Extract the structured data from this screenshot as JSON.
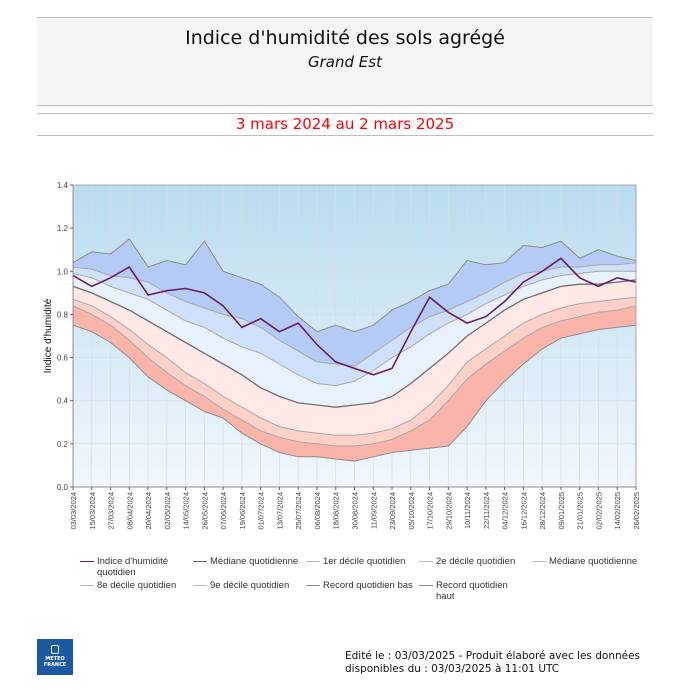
{
  "header": {
    "title": "Indice d'humidité des sols agrégé",
    "subtitle": "Grand Est",
    "period": "3 mars 2024 au 2 mars 2025"
  },
  "colors": {
    "index_line": "#6b1a6b",
    "period_text": "#ff0000",
    "band_high_top": "#b4ccf5",
    "band_d8_d9": "#cfe0fb",
    "band_med_d8": "#e8f1fe",
    "band_d2_med": "#ffe9e5",
    "band_d1_d2": "#fdd0c8",
    "band_low": "#fbb4a9",
    "plot_bg_top": "#b8dcef",
    "plot_bg_bottom": "#f1f7fd"
  },
  "chart_data": {
    "type": "area",
    "title": "Indice d'humidité des sols agrégé",
    "subtitle": "Grand Est",
    "xlabel": "",
    "ylabel": "Indice d'humidité",
    "ylim": [
      0.0,
      1.4
    ],
    "yticks": [
      "0.0",
      "0.2",
      "0.4",
      "0.6",
      "0.8",
      "1.0",
      "1.2",
      "1.4"
    ],
    "grid": true,
    "legend_position": "bottom",
    "x": [
      "03/03/2024",
      "15/03/2024",
      "27/03/2024",
      "08/04/2024",
      "20/04/2024",
      "02/05/2024",
      "14/05/2024",
      "26/05/2024",
      "07/06/2024",
      "19/06/2024",
      "01/07/2024",
      "13/07/2024",
      "25/07/2024",
      "06/08/2024",
      "18/08/2024",
      "30/08/2024",
      "11/09/2024",
      "23/09/2024",
      "05/10/2024",
      "17/10/2024",
      "29/10/2024",
      "10/11/2024",
      "22/11/2024",
      "04/12/2024",
      "16/12/2024",
      "28/12/2024",
      "09/01/2025",
      "21/01/2025",
      "02/02/2025",
      "14/02/2025",
      "26/02/2025"
    ],
    "series": [
      {
        "name": "Record quotidien haut",
        "values": [
          1.04,
          1.09,
          1.08,
          1.15,
          1.02,
          1.05,
          1.03,
          1.14,
          1.0,
          0.97,
          0.94,
          0.88,
          0.79,
          0.72,
          0.75,
          0.72,
          0.75,
          0.82,
          0.86,
          0.91,
          0.94,
          1.05,
          1.03,
          1.04,
          1.12,
          1.11,
          1.14,
          1.06,
          1.1,
          1.07,
          1.05
        ]
      },
      {
        "name": "9e décile quotidien",
        "values": [
          1.02,
          1.01,
          0.98,
          0.97,
          0.95,
          0.9,
          0.86,
          0.83,
          0.8,
          0.78,
          0.74,
          0.68,
          0.63,
          0.58,
          0.57,
          0.56,
          0.62,
          0.68,
          0.74,
          0.79,
          0.82,
          0.86,
          0.9,
          0.95,
          0.99,
          1.0,
          1.02,
          1.02,
          1.03,
          1.03,
          1.04
        ]
      },
      {
        "name": "8e décile quotidien",
        "values": [
          0.99,
          0.97,
          0.93,
          0.9,
          0.87,
          0.82,
          0.77,
          0.74,
          0.69,
          0.65,
          0.62,
          0.57,
          0.52,
          0.48,
          0.47,
          0.49,
          0.54,
          0.6,
          0.65,
          0.71,
          0.76,
          0.8,
          0.85,
          0.89,
          0.93,
          0.96,
          0.98,
          0.99,
          1.0,
          1.0,
          1.0
        ]
      },
      {
        "name": "Médiane quotidienne",
        "values": [
          0.93,
          0.9,
          0.86,
          0.82,
          0.77,
          0.72,
          0.67,
          0.62,
          0.57,
          0.52,
          0.46,
          0.42,
          0.39,
          0.38,
          0.37,
          0.38,
          0.39,
          0.42,
          0.48,
          0.55,
          0.62,
          0.7,
          0.76,
          0.82,
          0.87,
          0.9,
          0.93,
          0.94,
          0.94,
          0.95,
          0.96
        ]
      },
      {
        "name": "2e décile quotidien",
        "values": [
          0.87,
          0.84,
          0.79,
          0.73,
          0.66,
          0.6,
          0.53,
          0.48,
          0.42,
          0.37,
          0.32,
          0.28,
          0.26,
          0.25,
          0.24,
          0.24,
          0.25,
          0.27,
          0.31,
          0.38,
          0.47,
          0.58,
          0.64,
          0.7,
          0.76,
          0.8,
          0.83,
          0.85,
          0.86,
          0.87,
          0.88
        ]
      },
      {
        "name": "1er décile quotidien",
        "values": [
          0.84,
          0.8,
          0.75,
          0.68,
          0.6,
          0.53,
          0.47,
          0.42,
          0.36,
          0.31,
          0.26,
          0.23,
          0.21,
          0.2,
          0.19,
          0.19,
          0.2,
          0.22,
          0.26,
          0.31,
          0.4,
          0.5,
          0.57,
          0.63,
          0.69,
          0.74,
          0.77,
          0.79,
          0.81,
          0.82,
          0.84
        ]
      },
      {
        "name": "Record quotidien bas",
        "values": [
          0.75,
          0.72,
          0.67,
          0.6,
          0.51,
          0.45,
          0.4,
          0.35,
          0.32,
          0.25,
          0.2,
          0.16,
          0.14,
          0.14,
          0.13,
          0.12,
          0.14,
          0.16,
          0.17,
          0.18,
          0.19,
          0.28,
          0.4,
          0.49,
          0.57,
          0.64,
          0.69,
          0.71,
          0.73,
          0.74,
          0.75
        ]
      },
      {
        "name": "Indice d'humidité quotidien",
        "values": [
          0.98,
          0.93,
          0.97,
          1.02,
          0.89,
          0.91,
          0.92,
          0.9,
          0.84,
          0.74,
          0.78,
          0.72,
          0.76,
          0.66,
          0.58,
          0.55,
          0.52,
          0.55,
          0.72,
          0.88,
          0.81,
          0.76,
          0.79,
          0.86,
          0.95,
          1.0,
          1.06,
          0.97,
          0.93,
          0.97,
          0.95
        ]
      }
    ]
  },
  "legend": [
    {
      "label": "Indice d'humidité quotidien",
      "color": "#6b1a6b"
    },
    {
      "label": "Médiane quotidienne",
      "color": "#666666"
    },
    {
      "label": "1er décile quotidien",
      "color": "#bbbbbb"
    },
    {
      "label": "2e décile quotidien",
      "color": "#bbbbbb"
    },
    {
      "label": "Médiane quotidienne",
      "color": "#bbbbbb"
    },
    {
      "label": "8e décile quotidien",
      "color": "#bbbbbb"
    },
    {
      "label": "9e décile quotidien",
      "color": "#bbbbbb"
    },
    {
      "label": "Record quotidien bas",
      "color": "#888888"
    },
    {
      "label": "Record quotidien haut",
      "color": "#888888"
    }
  ],
  "footer": {
    "line1": "Edité le : 03/03/2025 - Produit élaboré avec les données",
    "line2": "disponibles du : 03/03/2025 à 11:01 UTC",
    "logo_line1": "METEO",
    "logo_line2": "FRANCE"
  }
}
